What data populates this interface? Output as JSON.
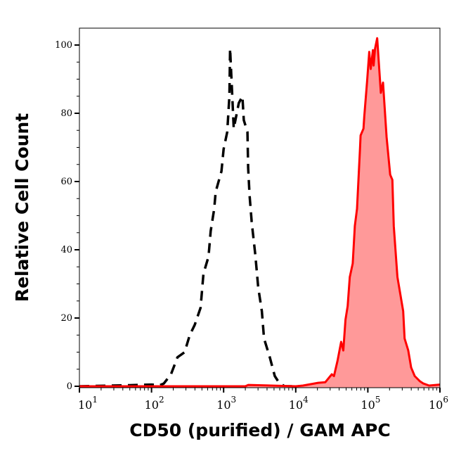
{
  "chart_data": {
    "type": "line",
    "title": "",
    "xlabel": "CD50 (purified) / GAM APC",
    "ylabel": "Relative Cell Count",
    "xscale": "log",
    "xlim": [
      10,
      1000000
    ],
    "ylim": [
      0,
      105
    ],
    "grid": false,
    "x_ticks": [
      {
        "base": "10",
        "exp": "1",
        "value": 10
      },
      {
        "base": "10",
        "exp": "2",
        "value": 100
      },
      {
        "base": "10",
        "exp": "3",
        "value": 1000
      },
      {
        "base": "10",
        "exp": "4",
        "value": 10000
      },
      {
        "base": "10",
        "exp": "5",
        "value": 100000
      },
      {
        "base": "10",
        "exp": "6",
        "value": 1000000
      }
    ],
    "y_ticks": [
      "0",
      "20",
      "40",
      "60",
      "80",
      "100"
    ],
    "series": [
      {
        "style": "dashed",
        "color": "#000000",
        "filled": false,
        "x": [
          10,
          50,
          100,
          130,
          148,
          186,
          229,
          288,
          339,
          398,
          479,
          525,
          617,
          661,
          741,
          776,
          933,
          1000,
          1122,
          1202,
          1216,
          1230,
          1380,
          1622,
          1820,
          1905,
          2138,
          2188,
          2291,
          2455,
          2754,
          3020,
          3388,
          3631,
          4365,
          5129,
          5888,
          7000,
          1000000
        ],
        "y": [
          0,
          0.3,
          0.5,
          0.3,
          0.8,
          3.5,
          8.5,
          10,
          15,
          18,
          23,
          33,
          38,
          45.5,
          52,
          57,
          63,
          69.5,
          74.5,
          85,
          92,
          99,
          75.5,
          83,
          85,
          78,
          74.5,
          64,
          56,
          48,
          38.5,
          29,
          22,
          14,
          8.5,
          3,
          1,
          0,
          0
        ]
      },
      {
        "style": "solid",
        "color": "#ff0000",
        "fill": "#ff9999",
        "filled": true,
        "x": [
          10,
          2000,
          2200,
          10000,
          12590,
          20420,
          25700,
          31620,
          33880,
          38020,
          42660,
          45710,
          48980,
          52480,
          56230,
          61660,
          66070,
          70790,
          77620,
          79430,
          87100,
          89130,
          97720,
          104700,
          109600,
          117500,
          120200,
          125900,
          134900,
          151400,
          162200,
          182000,
          204200,
          218800,
          229100,
          257000,
          309000,
          323600,
          363100,
          398100,
          446700,
          524800,
          588800,
          707900,
          1000000
        ],
        "y": [
          0,
          0,
          0.4,
          0,
          0.2,
          1,
          1.2,
          3.5,
          3,
          7.5,
          13,
          10.5,
          19.5,
          23.5,
          32,
          36,
          47,
          52,
          69,
          73.5,
          75.5,
          79,
          89.5,
          98,
          93,
          98.5,
          94,
          99,
          102,
          86,
          89,
          73,
          62,
          60.5,
          47,
          32,
          22,
          14,
          10.5,
          5.5,
          3,
          1.5,
          0.8,
          0.2,
          0.5
        ]
      }
    ]
  }
}
